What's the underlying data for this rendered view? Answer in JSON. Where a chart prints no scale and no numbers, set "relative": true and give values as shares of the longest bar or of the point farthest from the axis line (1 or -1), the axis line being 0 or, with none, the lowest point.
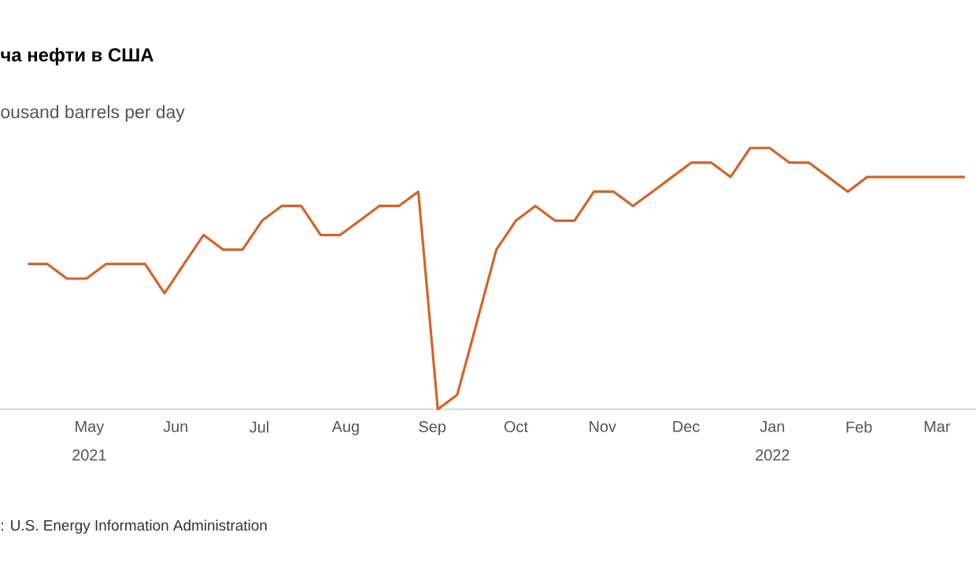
{
  "chart_data": {
    "type": "line",
    "title": "ча нефти в США",
    "subtitle": "ousand barrels per day",
    "annotations": [
      ": U.S. Energy Information Administration"
    ],
    "relative": true,
    "marker": "none",
    "line_style": "solid",
    "x": [
      "2021-04-09",
      "2021-04-16",
      "2021-04-23",
      "2021-04-30",
      "2021-05-07",
      "2021-05-14",
      "2021-05-21",
      "2021-05-28",
      "2021-06-04",
      "2021-06-11",
      "2021-06-18",
      "2021-06-25",
      "2021-07-02",
      "2021-07-09",
      "2021-07-16",
      "2021-07-23",
      "2021-07-30",
      "2021-08-06",
      "2021-08-13",
      "2021-08-20",
      "2021-08-27",
      "2021-09-03",
      "2021-09-10",
      "2021-09-17",
      "2021-09-24",
      "2021-10-01",
      "2021-10-08",
      "2021-10-15",
      "2021-10-22",
      "2021-10-29",
      "2021-11-05",
      "2021-11-12",
      "2021-11-19",
      "2021-11-26",
      "2021-12-03",
      "2021-12-10",
      "2021-12-17",
      "2021-12-24",
      "2021-12-31",
      "2022-01-07",
      "2022-01-14",
      "2022-01-21",
      "2022-01-28",
      "2022-02-04",
      "2022-02-11",
      "2022-02-18",
      "2022-02-25",
      "2022-03-04",
      "2022-03-11"
    ],
    "series": [
      {
        "color": "#d2642a",
        "values": [
          0.556,
          0.556,
          0.5,
          0.5,
          0.556,
          0.556,
          0.556,
          0.444,
          0.556,
          0.667,
          0.611,
          0.611,
          0.722,
          0.778,
          0.778,
          0.667,
          0.667,
          0.722,
          0.778,
          0.778,
          0.833,
          0,
          0.056,
          0.333,
          0.611,
          0.722,
          0.778,
          0.722,
          0.722,
          0.833,
          0.833,
          0.778,
          0.833,
          0.889,
          0.944,
          0.944,
          0.889,
          1,
          1,
          0.944,
          0.944,
          0.889,
          0.833,
          0.889,
          0.889,
          0.889,
          0.889,
          0.889,
          0.889
        ]
      }
    ],
    "xlim": [
      "2021-03-30",
      "2022-03-15"
    ],
    "xticks": [
      {
        "value": "2021-05-01",
        "label": "May"
      },
      {
        "value": "2021-06-01",
        "label": "Jun"
      },
      {
        "value": "2021-07-01",
        "label": "Jul"
      },
      {
        "value": "2021-08-01",
        "label": "Aug"
      },
      {
        "value": "2021-09-01",
        "label": "Sep"
      },
      {
        "value": "2021-10-01",
        "label": "Oct"
      },
      {
        "value": "2021-11-01",
        "label": "Nov"
      },
      {
        "value": "2021-12-01",
        "label": "Dec"
      },
      {
        "value": "2022-01-01",
        "label": "Jan"
      },
      {
        "value": "2022-02-01",
        "label": "Feb"
      },
      {
        "value": "2022-03-01",
        "label": "Mar"
      }
    ],
    "x2lim": [
      "2021-03-30",
      "2022-03-15"
    ],
    "x2ticks": [
      {
        "value": "2021-05-01",
        "label": "2021"
      },
      {
        "value": "2022-01-01",
        "label": "2022"
      }
    ]
  }
}
